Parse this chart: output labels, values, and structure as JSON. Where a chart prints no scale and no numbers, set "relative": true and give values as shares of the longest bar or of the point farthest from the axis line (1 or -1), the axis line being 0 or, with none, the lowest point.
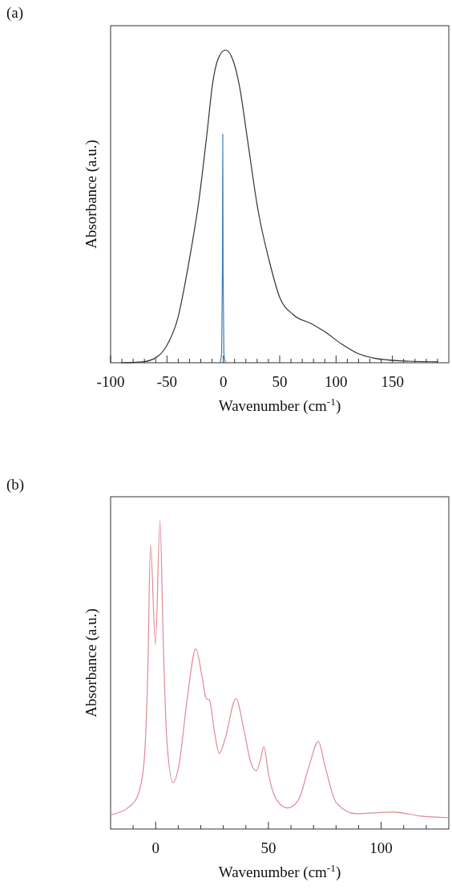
{
  "chart_data": [
    {
      "type": "line",
      "relative": true,
      "xlabel": "Wavenumber (cm$^{-1}$)",
      "ylabel": "Absorbance (a.u.)",
      "annotations": [
        "(a)"
      ],
      "xlim": [
        -100,
        200
      ],
      "xticks": [
        -100,
        {
          "value": -90,
          "label": null
        },
        {
          "value": -80,
          "label": null
        },
        {
          "value": -70,
          "label": null
        },
        {
          "value": -60,
          "label": null
        },
        -50,
        {
          "value": -40,
          "label": null
        },
        {
          "value": -30,
          "label": null
        },
        {
          "value": -20,
          "label": null
        },
        {
          "value": -10,
          "label": null
        },
        0,
        {
          "value": 10,
          "label": null
        },
        {
          "value": 20,
          "label": null
        },
        {
          "value": 30,
          "label": null
        },
        {
          "value": 40,
          "label": null
        },
        50,
        {
          "value": 60,
          "label": null
        },
        {
          "value": 70,
          "label": null
        },
        {
          "value": 80,
          "label": null
        },
        {
          "value": 90,
          "label": null
        },
        100,
        {
          "value": 110,
          "label": null
        },
        {
          "value": 120,
          "label": null
        },
        {
          "value": 130,
          "label": null
        },
        {
          "value": 140,
          "label": null
        },
        150,
        {
          "value": 160,
          "label": null
        },
        {
          "value": 170,
          "label": null
        },
        {
          "value": 180,
          "label": null
        },
        {
          "value": 190,
          "label": null
        }
      ],
      "series": [
        {
          "color": "#333333",
          "x": [
            -90.5,
            -71.4,
            -59.5,
            -50,
            -40.5,
            -31,
            -21.4,
            -14.3,
            -9.5,
            -4.8,
            1.9,
            8.3,
            14.3,
            21.4,
            31,
            40.5,
            50,
            61.9,
            78.6,
            90.5,
            104.8,
            119,
            133,
            157,
            190.5
          ],
          "values": [
            0,
            0.003,
            0.017,
            0.056,
            0.141,
            0.312,
            0.526,
            0.739,
            0.893,
            0.97,
            1,
            0.97,
            0.885,
            0.714,
            0.483,
            0.329,
            0.209,
            0.154,
            0.124,
            0.098,
            0.06,
            0.03,
            0.015,
            0.006,
            0.003
          ]
        },
        {
          "color": "#3d7db8",
          "x": [
            -3,
            -1.5,
            -0.8,
            -0.5,
            -0.2,
            0.5,
            2
          ],
          "values": [
            0,
            0.03,
            0.3,
            0.731,
            0.3,
            0.03,
            0
          ]
        }
      ]
    },
    {
      "type": "line",
      "relative": true,
      "xlabel": "Wavenumber (cm$^{-1}$)",
      "ylabel": "Absorbance (a.u.)",
      "annotations": [
        "(b)"
      ],
      "xlim": [
        -20,
        130
      ],
      "xticks": [
        {
          "value": -10,
          "label": null
        },
        0,
        {
          "value": 10,
          "label": null
        },
        {
          "value": 20,
          "label": null
        },
        {
          "value": 30,
          "label": null
        },
        {
          "value": 40,
          "label": null
        },
        50,
        {
          "value": 60,
          "label": null
        },
        {
          "value": 70,
          "label": null
        },
        {
          "value": 80,
          "label": null
        },
        {
          "value": 90,
          "label": null
        },
        100,
        {
          "value": 110,
          "label": null
        },
        {
          "value": 120,
          "label": null
        }
      ],
      "series": [
        {
          "color": "#e08a94",
          "x": [
            -20,
            -12.5,
            -8.3,
            -5.3,
            -3.5,
            -2.3,
            -0.1,
            1.9,
            3.4,
            4.9,
            7.7,
            10.3,
            14,
            17.8,
            20.6,
            22.4,
            23.8,
            26,
            28.2,
            30.8,
            35.6,
            39.2,
            42.2,
            44.6,
            46.4,
            48,
            50,
            53.7,
            58.5,
            63.3,
            68.1,
            72.1,
            75.3,
            80.1,
            88.6,
            105.4,
            117.5,
            129.5
          ],
          "values": [
            0.046,
            0.068,
            0.102,
            0.206,
            0.51,
            0.922,
            0.597,
            1,
            0.597,
            0.293,
            0.15,
            0.206,
            0.423,
            0.584,
            0.493,
            0.423,
            0.419,
            0.319,
            0.245,
            0.293,
            0.423,
            0.319,
            0.215,
            0.189,
            0.224,
            0.267,
            0.18,
            0.094,
            0.068,
            0.094,
            0.206,
            0.284,
            0.198,
            0.085,
            0.05,
            0.055,
            0.042,
            0.037
          ]
        }
      ]
    }
  ]
}
